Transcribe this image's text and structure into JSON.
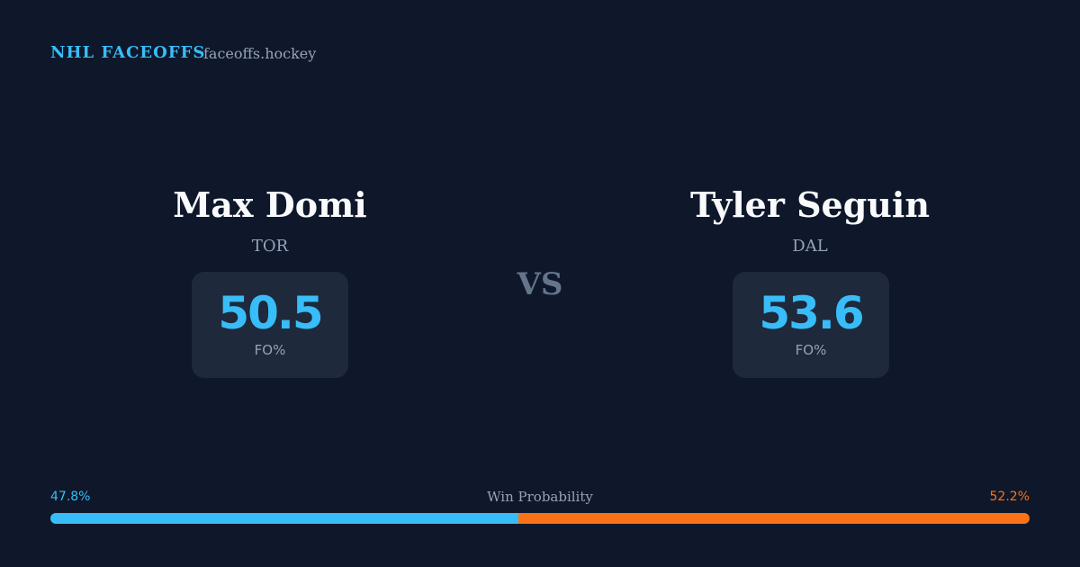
{
  "header": {
    "brand": "NHL FACEOFFS",
    "site": "faceoffs.hockey"
  },
  "players": [
    {
      "name": "Max Domi",
      "team": "TOR",
      "fo_pct": 50.5,
      "stat_label": "FO%"
    },
    {
      "name": "Tyler Seguin",
      "team": "DAL",
      "fo_pct": 53.6,
      "stat_label": "FO%"
    }
  ],
  "versus": "VS",
  "win_probability": {
    "title": "Win Probability",
    "values": [
      47.8,
      52.2
    ],
    "value_labels": [
      "47.8%",
      "52.2%"
    ],
    "colors": [
      "#38bdf8",
      "#f97316"
    ]
  }
}
